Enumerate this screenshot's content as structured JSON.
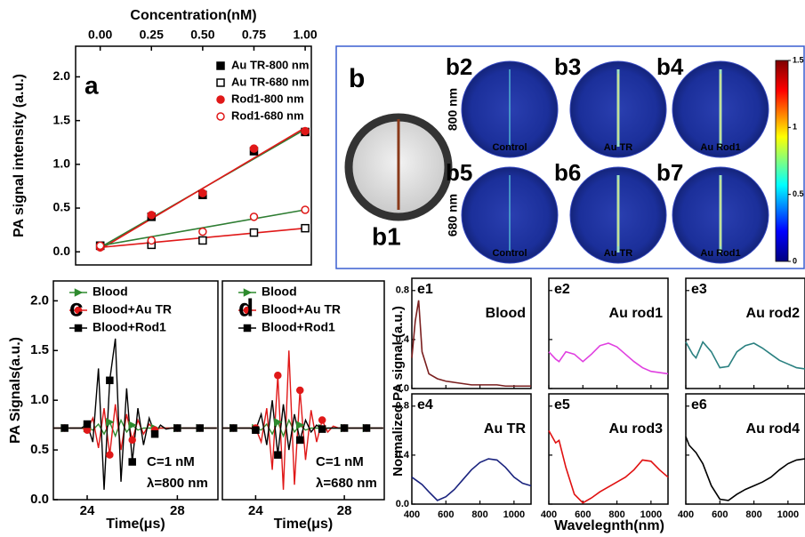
{
  "chart_data": [
    {
      "type": "scatter",
      "panel_label": "a",
      "xlabel": "Concentration(nM)",
      "ylabel": "PA signal intensity (a.u.)",
      "x": [
        0,
        0.25,
        0.5,
        0.75,
        1.0
      ],
      "xlim": [
        -0.12,
        1.03
      ],
      "xticks": [
        {
          "value": 0,
          "label": "0.00"
        },
        0.25,
        {
          "value": 0.5,
          "label": "0.50"
        },
        0.75,
        {
          "value": 1,
          "label": "1.00"
        }
      ],
      "ylim": [
        -0.15,
        2.35
      ],
      "yticks": [
        {
          "value": 0,
          "label": "0.0"
        },
        0.5,
        {
          "value": 1,
          "label": "1.0"
        },
        1.5,
        {
          "value": 2,
          "label": "2.0"
        }
      ],
      "series": [
        {
          "name": "Au TR-800 nm",
          "color": "#000000",
          "marker": "square",
          "filled": true,
          "values": [
            0.07,
            0.4,
            0.65,
            1.15,
            1.37
          ]
        },
        {
          "name": "Au TR-680 nm",
          "color": "#000000",
          "marker": "square",
          "filled": false,
          "values": [
            0.07,
            0.08,
            0.13,
            0.22,
            0.27
          ]
        },
        {
          "name": "Rod1-800 nm",
          "color": "#e01818",
          "marker": "circle",
          "filled": true,
          "values": [
            0.05,
            0.42,
            0.67,
            1.18,
            1.38
          ]
        },
        {
          "name": "Rod1-680 nm",
          "color": "#e01818",
          "marker": "circle",
          "filled": false,
          "values": [
            0.07,
            0.13,
            0.23,
            0.4,
            0.48
          ]
        }
      ],
      "fits": [
        {
          "color": "#2e7d32",
          "x": [
            0,
            1
          ],
          "values": [
            0.05,
            1.4
          ]
        },
        {
          "color": "#e01818",
          "x": [
            0,
            1
          ],
          "values": [
            0.03,
            1.42
          ]
        },
        {
          "color": "#2e7d32",
          "x": [
            0,
            1
          ],
          "values": [
            0.07,
            0.48
          ]
        },
        {
          "color": "#e01818",
          "x": [
            0,
            1
          ],
          "values": [
            0.05,
            0.27
          ]
        }
      ]
    },
    {
      "type": "image",
      "panel_label": "b",
      "photo_label": "b1",
      "image_labels": [
        "b2",
        "b3",
        "b4",
        "b5",
        "b6",
        "b7"
      ],
      "row_labels": [
        "800 nm",
        "680 nm"
      ],
      "column_captions": [
        "Control",
        "Au TR",
        "Au Rod1"
      ],
      "clim": [
        0,
        1.5
      ],
      "cticks": [
        0,
        0.5,
        1,
        1.5
      ]
    },
    {
      "type": "line",
      "panel_label": "c",
      "xlabel": "Time(μs)",
      "ylabel": "PA Signals(a.u.)",
      "annotations": [
        "C=1 nM",
        "λ=800 nm"
      ],
      "x": [
        22.5,
        22.75,
        23,
        23.25,
        23.5,
        23.75,
        24,
        24.25,
        24.5,
        24.75,
        25,
        25.25,
        25.5,
        25.75,
        26,
        26.25,
        26.5,
        26.75,
        27,
        27.25,
        27.5,
        27.75,
        28,
        28.25,
        28.5,
        28.75,
        29,
        29.25,
        29.5,
        29.75
      ],
      "xlim": [
        22.5,
        29.8
      ],
      "xticks": [
        24,
        28
      ],
      "ylim": [
        0,
        2.2
      ],
      "yticks": [
        {
          "value": 0,
          "label": "0.0"
        },
        0.5,
        {
          "value": 1,
          "label": "1.0"
        },
        1.5,
        {
          "value": 2,
          "label": "2.0"
        }
      ],
      "series": [
        {
          "name": "Blood",
          "color": "#2e8b2e",
          "marker": "triangle",
          "values": [
            0.72,
            0.72,
            0.72,
            0.72,
            0.72,
            0.72,
            0.72,
            0.7,
            0.76,
            0.66,
            0.78,
            0.64,
            0.8,
            0.68,
            0.75,
            0.7,
            0.72,
            0.72,
            0.72,
            0.72,
            0.72,
            0.72,
            0.72,
            0.72,
            0.72,
            0.72,
            0.72,
            0.72,
            0.72,
            0.72
          ]
        },
        {
          "name": "Blood+Au TR",
          "color": "#e01818",
          "marker": "circle",
          "values": [
            0.72,
            0.72,
            0.72,
            0.72,
            0.72,
            0.72,
            0.7,
            0.82,
            0.52,
            0.92,
            0.45,
            0.96,
            0.5,
            0.86,
            0.6,
            0.8,
            0.66,
            0.76,
            0.7,
            0.72,
            0.72,
            0.72,
            0.72,
            0.72,
            0.72,
            0.72,
            0.72,
            0.72,
            0.72,
            0.72
          ]
        },
        {
          "name": "Blood+Rod1",
          "color": "#000000",
          "marker": "square",
          "values": [
            0.72,
            0.72,
            0.72,
            0.72,
            0.72,
            0.72,
            0.76,
            0.58,
            1.32,
            0.1,
            1.2,
            1.62,
            0.18,
            1.12,
            0.38,
            0.92,
            0.55,
            0.82,
            0.66,
            0.75,
            0.71,
            0.72,
            0.72,
            0.72,
            0.72,
            0.72,
            0.72,
            0.72,
            0.72,
            0.72
          ]
        }
      ]
    },
    {
      "type": "line",
      "panel_label": "d",
      "xlabel": "Time(μs)",
      "annotations": [
        "C=1 nM",
        "λ=680 nm"
      ],
      "x": [
        22.5,
        22.75,
        23,
        23.25,
        23.5,
        23.75,
        24,
        24.25,
        24.5,
        24.75,
        25,
        25.25,
        25.5,
        25.75,
        26,
        26.25,
        26.5,
        26.75,
        27,
        27.25,
        27.5,
        27.75,
        28,
        28.25,
        28.5,
        28.75,
        29,
        29.25,
        29.5,
        29.75
      ],
      "xlim": [
        22.5,
        29.8
      ],
      "xticks": [
        24,
        28
      ],
      "ylim": [
        0,
        2.2
      ],
      "series": [
        {
          "name": "Blood",
          "color": "#2e8b2e",
          "marker": "triangle",
          "values": [
            0.72,
            0.72,
            0.72,
            0.72,
            0.72,
            0.72,
            0.72,
            0.7,
            0.76,
            0.66,
            0.78,
            0.64,
            0.8,
            0.68,
            0.75,
            0.7,
            0.72,
            0.72,
            0.72,
            0.72,
            0.72,
            0.72,
            0.72,
            0.72,
            0.72,
            0.72,
            0.72,
            0.72,
            0.72,
            0.72
          ]
        },
        {
          "name": "Blood+Au TR",
          "color": "#e01818",
          "marker": "circle",
          "values": [
            0.72,
            0.72,
            0.72,
            0.72,
            0.72,
            0.72,
            0.72,
            0.58,
            0.92,
            0.3,
            1.25,
            0.1,
            1.5,
            0.15,
            1.1,
            0.4,
            0.9,
            0.58,
            0.8,
            0.68,
            0.74,
            0.72,
            0.72,
            0.72,
            0.72,
            0.72,
            0.72,
            0.72,
            0.72,
            0.72
          ]
        },
        {
          "name": "Blood+Rod1",
          "color": "#000000",
          "marker": "square",
          "values": [
            0.72,
            0.72,
            0.72,
            0.72,
            0.72,
            0.72,
            0.7,
            0.86,
            0.55,
            1.0,
            0.45,
            0.96,
            0.5,
            0.86,
            0.6,
            0.8,
            0.68,
            0.75,
            0.71,
            0.72,
            0.72,
            0.72,
            0.72,
            0.72,
            0.72,
            0.72,
            0.72,
            0.72,
            0.72,
            0.72
          ]
        }
      ]
    },
    {
      "type": "small_multiples",
      "ylabel": "Normalized PA signal (a.u.)",
      "xlabel": "Wavelegnth(nm)",
      "x": [
        400,
        420,
        440,
        460,
        500,
        550,
        600,
        650,
        700,
        750,
        800,
        850,
        900,
        950,
        1000,
        1050,
        1100
      ],
      "xlim": [
        400,
        1100
      ],
      "xticks": [
        400,
        600,
        800,
        1000
      ],
      "ylim": [
        0,
        0.9
      ],
      "yticks": [
        {
          "value": 0,
          "label": "0.0"
        },
        0.4,
        0.8
      ],
      "panels": [
        {
          "label": "e1",
          "name": "Blood",
          "color": "#7a1f1f",
          "values": [
            0.25,
            0.55,
            0.72,
            0.3,
            0.12,
            0.08,
            0.06,
            0.05,
            0.04,
            0.03,
            0.03,
            0.03,
            0.03,
            0.02,
            0.02,
            0.02,
            0.02
          ]
        },
        {
          "label": "e2",
          "name": "Au rod1",
          "color": "#e040e0",
          "values": [
            0.3,
            0.27,
            0.24,
            0.22,
            0.3,
            0.28,
            0.22,
            0.28,
            0.35,
            0.37,
            0.34,
            0.28,
            0.22,
            0.17,
            0.14,
            0.13,
            0.12
          ]
        },
        {
          "label": "e3",
          "name": "Au rod2",
          "color": "#2a8080",
          "values": [
            0.38,
            0.33,
            0.28,
            0.25,
            0.38,
            0.3,
            0.17,
            0.18,
            0.3,
            0.35,
            0.37,
            0.33,
            0.28,
            0.23,
            0.2,
            0.17,
            0.16
          ]
        },
        {
          "label": "e4",
          "name": "Au TR",
          "color": "#1a237e",
          "values": [
            0.22,
            0.2,
            0.18,
            0.16,
            0.1,
            0.03,
            0.06,
            0.12,
            0.2,
            0.28,
            0.34,
            0.37,
            0.36,
            0.3,
            0.22,
            0.17,
            0.15
          ]
        },
        {
          "label": "e5",
          "name": "Au rod3",
          "color": "#e01010",
          "values": [
            0.6,
            0.55,
            0.5,
            0.52,
            0.3,
            0.08,
            0.01,
            0.05,
            0.1,
            0.14,
            0.18,
            0.22,
            0.28,
            0.36,
            0.35,
            0.28,
            0.22
          ]
        },
        {
          "label": "e6",
          "name": "Au rod4",
          "color": "#000000",
          "values": [
            0.55,
            0.48,
            0.45,
            0.42,
            0.33,
            0.15,
            0.04,
            0.03,
            0.08,
            0.12,
            0.15,
            0.18,
            0.22,
            0.28,
            0.33,
            0.36,
            0.37
          ]
        }
      ]
    }
  ]
}
